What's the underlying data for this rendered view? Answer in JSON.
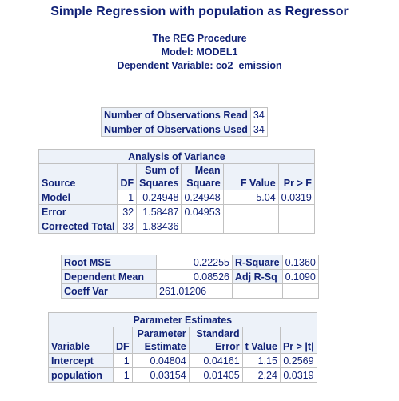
{
  "title": "Simple Regression with population as Regressor",
  "procedure": "The REG Procedure",
  "model": "Model: MODEL1",
  "dependent": "Dependent Variable: co2_emission",
  "nobs": {
    "rows": [
      {
        "label": "Number of Observations Read",
        "value": "34"
      },
      {
        "label": "Number of Observations Used",
        "value": "34"
      }
    ]
  },
  "anova": {
    "caption": "Analysis of Variance",
    "headers": {
      "source": "Source",
      "df": "DF",
      "ss_top": "Sum of",
      "ss_bottom": "Squares",
      "ms_top": "Mean",
      "ms_bottom": "Square",
      "f": "F Value",
      "p": "Pr > F"
    },
    "rows": [
      {
        "source": "Model",
        "df": "1",
        "ss": "0.24948",
        "ms": "0.24948",
        "f": "5.04",
        "p": "0.0319"
      },
      {
        "source": "Error",
        "df": "32",
        "ss": "1.58487",
        "ms": "0.04953",
        "f": "",
        "p": ""
      },
      {
        "source": "Corrected Total",
        "df": "33",
        "ss": "1.83436",
        "ms": "",
        "f": "",
        "p": ""
      }
    ]
  },
  "fit": {
    "rows": [
      {
        "label": "Root MSE",
        "value": "0.22255",
        "label2": "R-Square",
        "value2": "0.1360"
      },
      {
        "label": "Dependent Mean",
        "value": "0.08526",
        "label2": "Adj R-Sq",
        "value2": "0.1090"
      },
      {
        "label": "Coeff Var",
        "value": "261.01206",
        "label2": "",
        "value2": ""
      }
    ]
  },
  "params": {
    "caption": "Parameter Estimates",
    "headers": {
      "variable": "Variable",
      "df": "DF",
      "pe_top": "Parameter",
      "pe_bottom": "Estimate",
      "se_top": "Standard",
      "se_bottom": "Error",
      "t": "t Value",
      "p": "Pr > |t|"
    },
    "rows": [
      {
        "variable": "Intercept",
        "df": "1",
        "estimate": "0.04804",
        "se": "0.04161",
        "t": "1.15",
        "p": "0.2569"
      },
      {
        "variable": "population",
        "df": "1",
        "estimate": "0.03154",
        "se": "0.01405",
        "t": "2.24",
        "p": "0.0319"
      }
    ]
  }
}
